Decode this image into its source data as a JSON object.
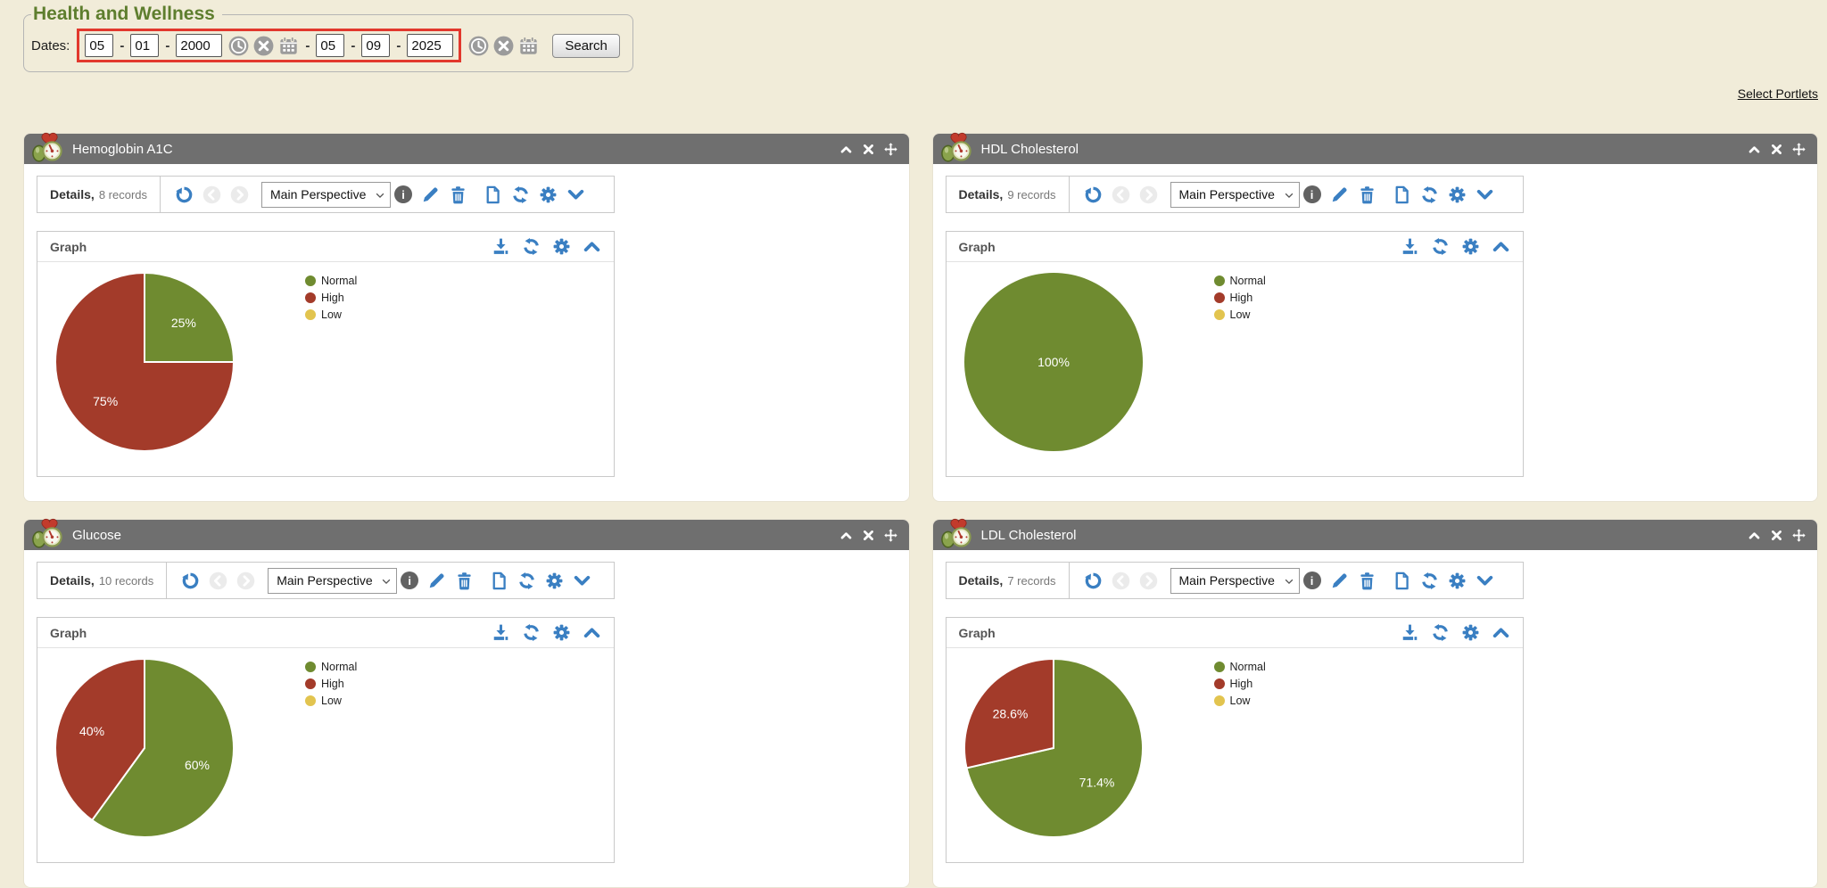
{
  "header": {
    "title": "Health and Wellness",
    "dates_label": "Dates:",
    "date_separator": "-",
    "range_separator": "-",
    "from_date": {
      "month": "05",
      "day": "01",
      "year": "2000"
    },
    "to_date": {
      "month": "05",
      "day": "09",
      "year": "2025"
    },
    "search_label": "Search",
    "select_portlets_label": "Select Portlets"
  },
  "labels": {
    "details": "Details,",
    "graph": "Graph",
    "perspective_option": "Main Perspective",
    "info_glyph": "i"
  },
  "portlets": [
    {
      "title": "Hemoglobin A1C",
      "records": "8 records"
    },
    {
      "title": "HDL Cholesterol",
      "records": "9 records"
    },
    {
      "title": "Glucose",
      "records": "10 records"
    },
    {
      "title": "LDL Cholesterol",
      "records": "7 records"
    }
  ],
  "chart_data": [
    {
      "type": "pie",
      "title": "Hemoglobin A1C",
      "legend": [
        "Normal",
        "High",
        "Low"
      ],
      "legend_position": "right",
      "slices": [
        {
          "label": "Normal",
          "value": 25,
          "display": "25%"
        },
        {
          "label": "High",
          "value": 75,
          "display": "75%"
        },
        {
          "label": "Low",
          "value": 0,
          "display": ""
        }
      ]
    },
    {
      "type": "pie",
      "title": "HDL Cholesterol",
      "legend": [
        "Normal",
        "High",
        "Low"
      ],
      "legend_position": "right",
      "slices": [
        {
          "label": "Normal",
          "value": 100,
          "display": "100%"
        },
        {
          "label": "High",
          "value": 0,
          "display": ""
        },
        {
          "label": "Low",
          "value": 0,
          "display": ""
        }
      ]
    },
    {
      "type": "pie",
      "title": "Glucose",
      "legend": [
        "Normal",
        "High",
        "Low"
      ],
      "legend_position": "right",
      "slices": [
        {
          "label": "Normal",
          "value": 60,
          "display": "60%"
        },
        {
          "label": "High",
          "value": 40,
          "display": "40%"
        },
        {
          "label": "Low",
          "value": 0,
          "display": ""
        }
      ]
    },
    {
      "type": "pie",
      "title": "LDL Cholesterol",
      "legend": [
        "Normal",
        "High",
        "Low"
      ],
      "legend_position": "right",
      "slices": [
        {
          "label": "Normal",
          "value": 71.4,
          "display": "71.4%"
        },
        {
          "label": "High",
          "value": 28.6,
          "display": "28.6%"
        },
        {
          "label": "Low",
          "value": 0,
          "display": ""
        }
      ]
    }
  ],
  "colors": {
    "page_bg": "#f1ecd9",
    "panel_bg": "#ffffff",
    "titlebar_bg": "#6f6f6f",
    "box_border": "#c9c9c9",
    "accent_blue": "#3a7fc2",
    "annotation_red": "#e2382d",
    "title_green": "#5e7e2e",
    "link_color": "#111111",
    "series": {
      "Normal": "#6f8b30",
      "High": "#a33b2a",
      "Low": "#e2c44f"
    }
  }
}
